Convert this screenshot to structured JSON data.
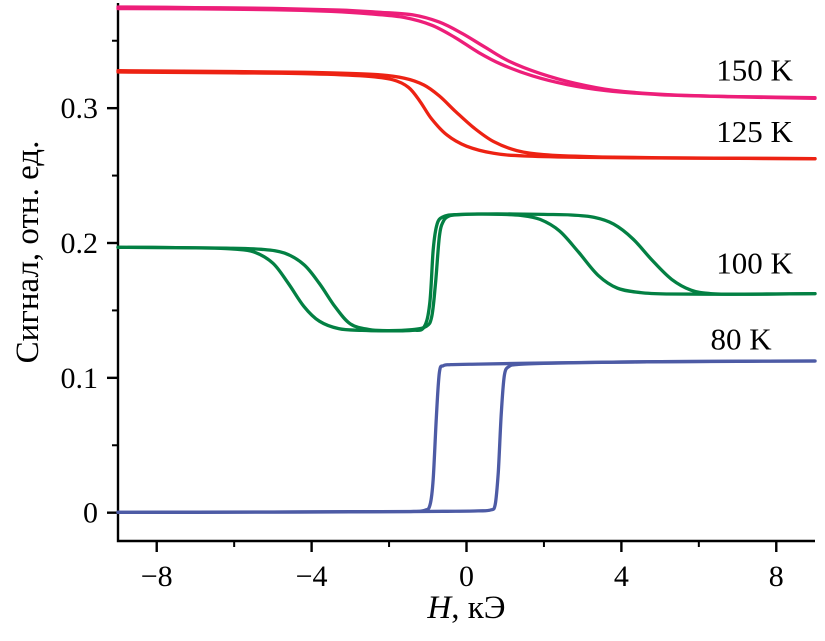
{
  "chart_data": {
    "type": "line",
    "title": "",
    "xlabel": "H, кЭ",
    "xlabel_italic": "H",
    "xlabel_rest": ", кЭ",
    "ylabel": "Сигнал, отн. ед.",
    "xlim": [
      -9,
      9
    ],
    "ylim": [
      -0.021,
      0.3765
    ],
    "grid": false,
    "legend_position": "labels-right-inside",
    "xticks": {
      "major": [
        -8,
        -4,
        0,
        4,
        8
      ],
      "minor": [
        -6,
        -2,
        2,
        6
      ],
      "labels": [
        "−8",
        "−4",
        "0",
        "4",
        "8"
      ]
    },
    "yticks": {
      "major": [
        0,
        0.1,
        0.2,
        0.3
      ],
      "minor": [
        0.05,
        0.15,
        0.25,
        0.35
      ],
      "labels": [
        "0",
        "0.1",
        "0.2",
        "0.3"
      ]
    },
    "series": [
      {
        "name": "150 K",
        "color": "#ed1e79",
        "label_pos": [
          6.45,
          0.3285
        ],
        "branches": [
          [
            [
              -9,
              0.3738
            ],
            [
              -7,
              0.3736
            ],
            [
              -5,
              0.373
            ],
            [
              -3.5,
              0.3718
            ],
            [
              -2.5,
              0.37
            ],
            [
              -1.6,
              0.3672
            ],
            [
              -0.9,
              0.3615
            ],
            [
              -0.3,
              0.3525
            ],
            [
              0.3,
              0.3415
            ],
            [
              0.9,
              0.3325
            ],
            [
              1.7,
              0.324
            ],
            [
              2.6,
              0.3175
            ],
            [
              3.6,
              0.313
            ],
            [
              5.0,
              0.31
            ],
            [
              6.5,
              0.3088
            ],
            [
              8.0,
              0.3082
            ],
            [
              9,
              0.3078
            ]
          ],
          [
            [
              -9,
              0.375
            ],
            [
              -7,
              0.3746
            ],
            [
              -5,
              0.374
            ],
            [
              -3.3,
              0.3728
            ],
            [
              -2.3,
              0.3712
            ],
            [
              -1.4,
              0.3692
            ],
            [
              -0.7,
              0.3638
            ],
            [
              -0.1,
              0.3552
            ],
            [
              0.5,
              0.3448
            ],
            [
              1.1,
              0.3348
            ],
            [
              1.9,
              0.3258
            ],
            [
              2.8,
              0.3185
            ],
            [
              3.8,
              0.3132
            ],
            [
              5.2,
              0.31
            ],
            [
              6.8,
              0.3085
            ],
            [
              9,
              0.3072
            ]
          ]
        ]
      },
      {
        "name": "125 K",
        "color": "#ed2213",
        "label_pos": [
          6.45,
          0.283
        ],
        "branches": [
          [
            [
              -9,
              0.3268
            ],
            [
              -6,
              0.3262
            ],
            [
              -4,
              0.3255
            ],
            [
              -2.6,
              0.3238
            ],
            [
              -1.9,
              0.321
            ],
            [
              -1.5,
              0.3155
            ],
            [
              -1.2,
              0.305
            ],
            [
              -0.9,
              0.292
            ],
            [
              -0.5,
              0.28
            ],
            [
              0.0,
              0.2718
            ],
            [
              0.7,
              0.2665
            ],
            [
              1.5,
              0.2645
            ],
            [
              3.0,
              0.2635
            ],
            [
              5.0,
              0.263
            ],
            [
              7.0,
              0.2628
            ],
            [
              9,
              0.2625
            ]
          ],
          [
            [
              -9,
              0.3278
            ],
            [
              -6,
              0.3272
            ],
            [
              -4,
              0.3265
            ],
            [
              -2.4,
              0.325
            ],
            [
              -1.6,
              0.3222
            ],
            [
              -1.1,
              0.3172
            ],
            [
              -0.7,
              0.309
            ],
            [
              -0.3,
              0.298
            ],
            [
              0.2,
              0.2852
            ],
            [
              0.7,
              0.2752
            ],
            [
              1.3,
              0.2685
            ],
            [
              2.0,
              0.2655
            ],
            [
              3.2,
              0.264
            ],
            [
              5.0,
              0.2632
            ],
            [
              9,
              0.2625
            ]
          ]
        ]
      },
      {
        "name": "100 K",
        "color": "#038043",
        "label_pos": [
          6.45,
          0.1855
        ],
        "branches": [
          [
            [
              -9,
              0.1968
            ],
            [
              -7.5,
              0.1966
            ],
            [
              -6.5,
              0.1962
            ],
            [
              -6.0,
              0.1955
            ],
            [
              -5.5,
              0.1935
            ],
            [
              -5.0,
              0.185
            ],
            [
              -4.6,
              0.17
            ],
            [
              -4.2,
              0.153
            ],
            [
              -3.8,
              0.142
            ],
            [
              -3.3,
              0.1365
            ],
            [
              -2.7,
              0.1352
            ],
            [
              -2.0,
              0.1348
            ],
            [
              -1.4,
              0.1352
            ],
            [
              -1.1,
              0.1375
            ],
            [
              -0.95,
              0.155
            ],
            [
              -0.86,
              0.195
            ],
            [
              -0.76,
              0.214
            ],
            [
              -0.6,
              0.2195
            ],
            [
              -0.3,
              0.221
            ],
            [
              0.3,
              0.2215
            ],
            [
              0.9,
              0.2212
            ],
            [
              1.4,
              0.2205
            ],
            [
              1.9,
              0.2175
            ],
            [
              2.4,
              0.209
            ],
            [
              2.9,
              0.193
            ],
            [
              3.4,
              0.176
            ],
            [
              3.9,
              0.1665
            ],
            [
              4.5,
              0.1632
            ],
            [
              5.2,
              0.1622
            ],
            [
              6.5,
              0.162
            ],
            [
              8,
              0.1622
            ],
            [
              9,
              0.1625
            ]
          ],
          [
            [
              9,
              0.1625
            ],
            [
              8,
              0.1622
            ],
            [
              7,
              0.162
            ],
            [
              6.3,
              0.1625
            ],
            [
              5.8,
              0.165
            ],
            [
              5.3,
              0.173
            ],
            [
              4.8,
              0.187
            ],
            [
              4.3,
              0.203
            ],
            [
              3.8,
              0.214
            ],
            [
              3.3,
              0.219
            ],
            [
              2.7,
              0.2208
            ],
            [
              2.0,
              0.2212
            ],
            [
              1.2,
              0.2215
            ],
            [
              0.4,
              0.2215
            ],
            [
              -0.2,
              0.221
            ],
            [
              -0.45,
              0.22
            ],
            [
              -0.6,
              0.216
            ],
            [
              -0.7,
              0.205
            ],
            [
              -0.8,
              0.17
            ],
            [
              -0.9,
              0.145
            ],
            [
              -1.05,
              0.138
            ],
            [
              -1.4,
              0.1358
            ],
            [
              -2.0,
              0.135
            ],
            [
              -2.5,
              0.1358
            ],
            [
              -3.0,
              0.14
            ],
            [
              -3.4,
              0.153
            ],
            [
              -3.8,
              0.17
            ],
            [
              -4.2,
              0.184
            ],
            [
              -4.7,
              0.1925
            ],
            [
              -5.3,
              0.1953
            ],
            [
              -6.2,
              0.1962
            ],
            [
              -7.5,
              0.1966
            ],
            [
              -9,
              0.1968
            ]
          ]
        ]
      },
      {
        "name": "80 K",
        "color": "#4d5ba5",
        "label_pos": [
          6.3,
          0.129
        ],
        "branches": [
          [
            [
              -9,
              0.0003
            ],
            [
              -7,
              0.0004
            ],
            [
              -5,
              0.0005
            ],
            [
              -3,
              0.0007
            ],
            [
              -1.5,
              0.0008
            ],
            [
              -0.5,
              0.001
            ],
            [
              0.3,
              0.0013
            ],
            [
              0.62,
              0.002
            ],
            [
              0.74,
              0.006
            ],
            [
              0.82,
              0.03
            ],
            [
              0.9,
              0.075
            ],
            [
              0.98,
              0.102
            ],
            [
              1.1,
              0.1085
            ],
            [
              1.35,
              0.11
            ],
            [
              2.0,
              0.1108
            ],
            [
              3.5,
              0.1115
            ],
            [
              5.0,
              0.112
            ],
            [
              7.0,
              0.1123
            ],
            [
              9,
              0.1125
            ]
          ],
          [
            [
              9,
              0.1125
            ],
            [
              7,
              0.1123
            ],
            [
              5,
              0.112
            ],
            [
              3,
              0.1114
            ],
            [
              1.5,
              0.1108
            ],
            [
              0.3,
              0.1102
            ],
            [
              -0.4,
              0.1098
            ],
            [
              -0.6,
              0.109
            ],
            [
              -0.7,
              0.104
            ],
            [
              -0.78,
              0.07
            ],
            [
              -0.86,
              0.025
            ],
            [
              -0.94,
              0.006
            ],
            [
              -1.08,
              0.0018
            ],
            [
              -1.5,
              0.0009
            ],
            [
              -3,
              0.0006
            ],
            [
              -5,
              0.0004
            ],
            [
              -7,
              0.0003
            ],
            [
              -9,
              0.0002
            ]
          ]
        ]
      }
    ]
  }
}
